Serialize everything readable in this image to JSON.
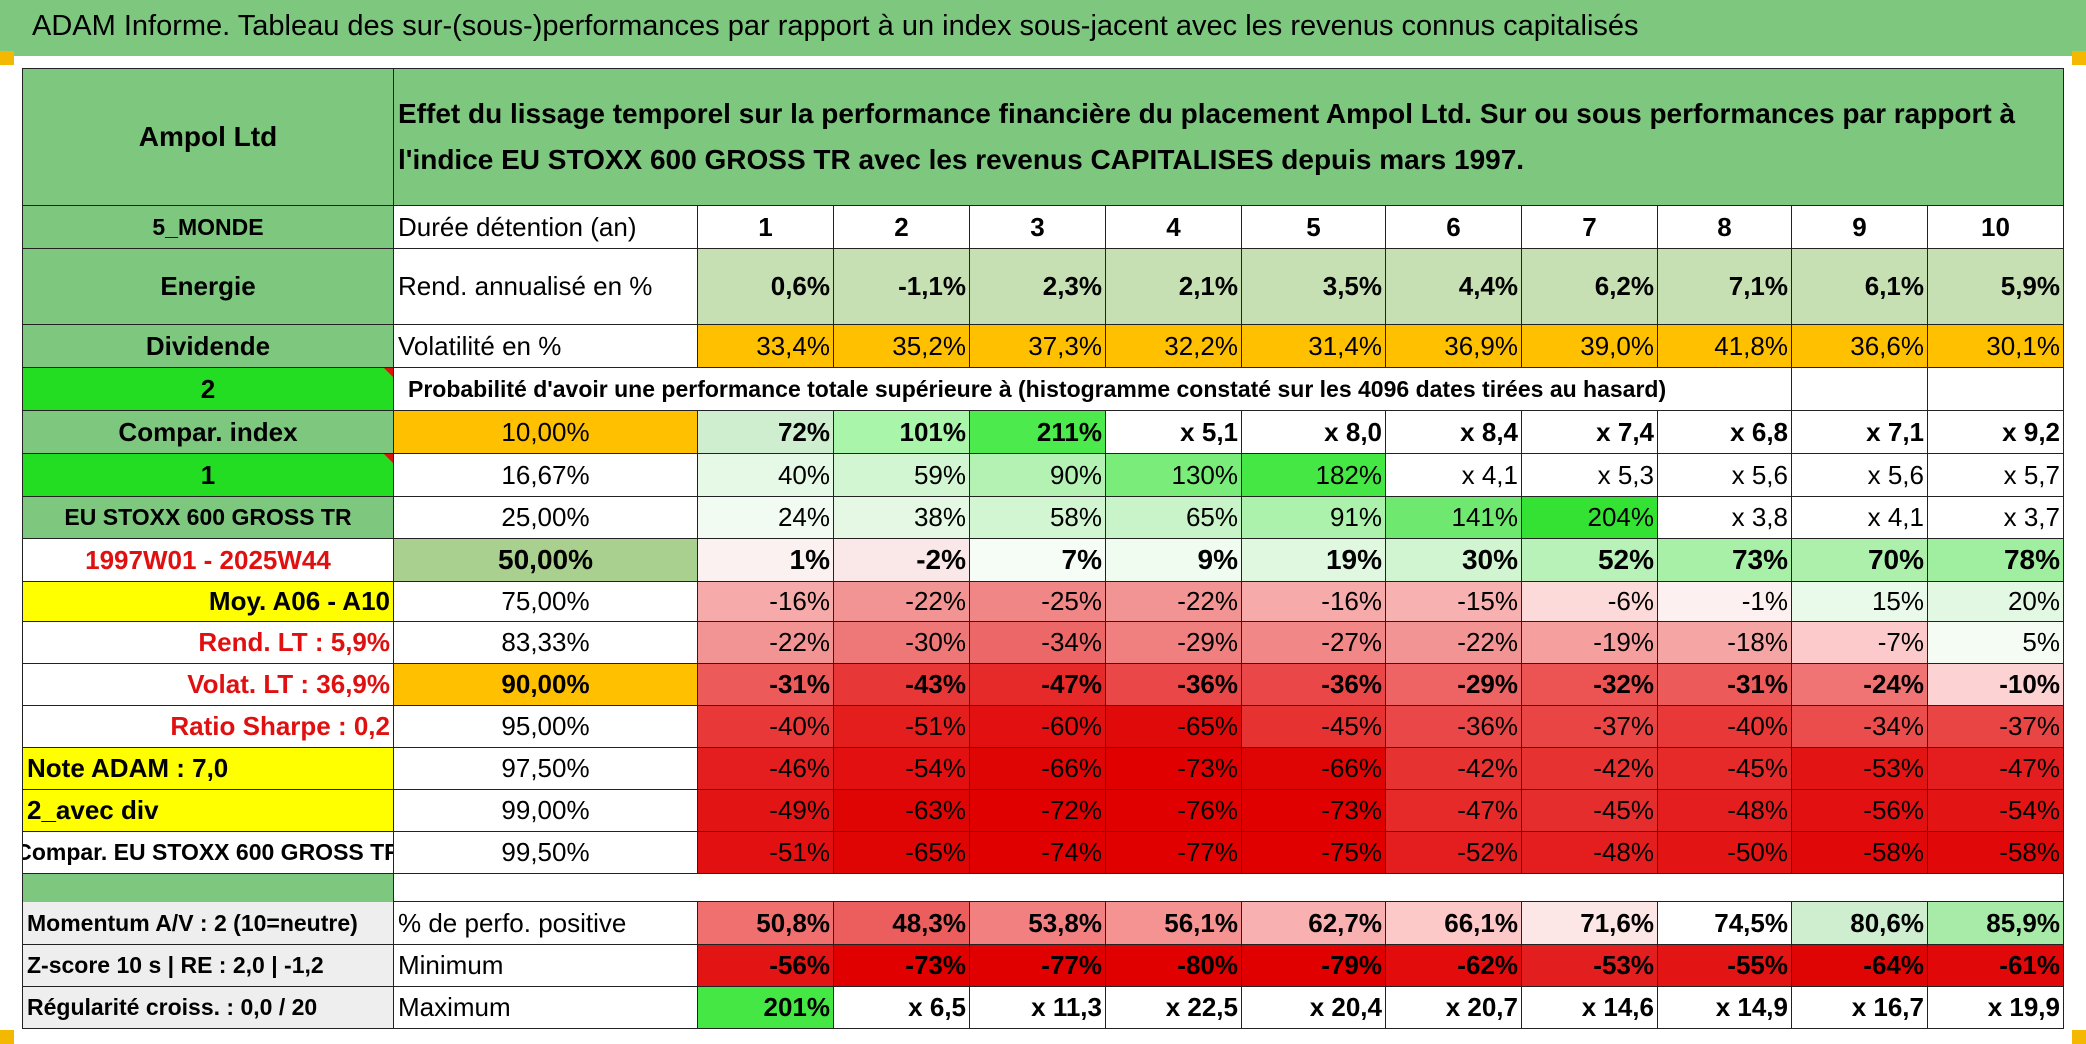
{
  "title": "ADAM Informe. Tableau des sur-(sous-)performances par rapport à un index sous-jacent avec les revenus connus capitalisés",
  "header": {
    "company": "Ampol Ltd",
    "description_line1": "Effet du lissage temporel sur la performance financière du placement Ampol Ltd. Sur ou sous performances par rapport à",
    "description_line2": "l'indice EU STOXX 600 GROSS TR avec les revenus CAPITALISES depuis mars 1997."
  },
  "side_labels": {
    "zone": "5_MONDE",
    "sector": "Energie",
    "type": "Dividende",
    "box2": "2",
    "compar_index": "Compar. index",
    "box1": "1",
    "index_name": "EU STOXX 600 GROSS TR",
    "period": "1997W01 - 2025W44",
    "moy": "Moy. A06 - A10",
    "rend_lt": "Rend. LT :   5,9%",
    "volat_lt": "Volat. LT :   36,9%",
    "sharpe": "Ratio Sharpe :    0,2",
    "note": "Note ADAM : 7,0",
    "avec_div": "2_avec div",
    "compar_full": "Compar. EU STOXX 600 GROSS TR",
    "momentum": "Momentum A/V : 2 (10=neutre)",
    "zscore": "Z-score 10 s | RE : 2,0 | -1,2",
    "regularite": "Régularité croiss. : 0,0 / 20"
  },
  "duration": {
    "label": "Durée détention (an)",
    "years": [
      "1",
      "2",
      "3",
      "4",
      "5",
      "6",
      "7",
      "8",
      "9",
      "10"
    ]
  },
  "rend": {
    "label": "Rend. annualisé en %",
    "values": [
      "0,6%",
      "-1,1%",
      "2,3%",
      "2,1%",
      "3,5%",
      "4,4%",
      "6,2%",
      "7,1%",
      "6,1%",
      "5,9%"
    ]
  },
  "vol": {
    "label": "Volatilité en %",
    "values": [
      "33,4%",
      "35,2%",
      "37,3%",
      "32,2%",
      "31,4%",
      "36,9%",
      "39,0%",
      "41,8%",
      "36,6%",
      "30,1%"
    ]
  },
  "prob_label": "Probabilité d'avoir une performance totale supérieure à (histogramme constaté sur les 4096 dates tirées au hasard)",
  "prob_rows": [
    {
      "pct": "10,00%",
      "values": [
        "72%",
        "101%",
        "211%",
        "x 5,1",
        "x 8,0",
        "x 8,4",
        "x 7,4",
        "x 6,8",
        "x 7,1",
        "x 9,2"
      ]
    },
    {
      "pct": "16,67%",
      "values": [
        "40%",
        "59%",
        "90%",
        "130%",
        "182%",
        "x 4,1",
        "x 5,3",
        "x 5,6",
        "x 5,6",
        "x 5,7"
      ]
    },
    {
      "pct": "25,00%",
      "values": [
        "24%",
        "38%",
        "58%",
        "65%",
        "91%",
        "141%",
        "204%",
        "x 3,8",
        "x 4,1",
        "x 3,7"
      ]
    },
    {
      "pct": "50,00%",
      "values": [
        "1%",
        "-2%",
        "7%",
        "9%",
        "19%",
        "30%",
        "52%",
        "73%",
        "70%",
        "78%"
      ]
    },
    {
      "pct": "75,00%",
      "values": [
        "-16%",
        "-22%",
        "-25%",
        "-22%",
        "-16%",
        "-15%",
        "-6%",
        "-1%",
        "15%",
        "20%"
      ]
    },
    {
      "pct": "83,33%",
      "values": [
        "-22%",
        "-30%",
        "-34%",
        "-29%",
        "-27%",
        "-22%",
        "-19%",
        "-18%",
        "-7%",
        "5%"
      ]
    },
    {
      "pct": "90,00%",
      "values": [
        "-31%",
        "-43%",
        "-47%",
        "-36%",
        "-36%",
        "-29%",
        "-32%",
        "-31%",
        "-24%",
        "-10%"
      ]
    },
    {
      "pct": "95,00%",
      "values": [
        "-40%",
        "-51%",
        "-60%",
        "-65%",
        "-45%",
        "-36%",
        "-37%",
        "-40%",
        "-34%",
        "-37%"
      ]
    },
    {
      "pct": "97,50%",
      "values": [
        "-46%",
        "-54%",
        "-66%",
        "-73%",
        "-66%",
        "-42%",
        "-42%",
        "-45%",
        "-53%",
        "-47%"
      ]
    },
    {
      "pct": "99,00%",
      "values": [
        "-49%",
        "-63%",
        "-72%",
        "-76%",
        "-73%",
        "-47%",
        "-45%",
        "-48%",
        "-56%",
        "-54%"
      ]
    },
    {
      "pct": "99,50%",
      "values": [
        "-51%",
        "-65%",
        "-74%",
        "-77%",
        "-75%",
        "-52%",
        "-48%",
        "-50%",
        "-58%",
        "-58%"
      ]
    }
  ],
  "positive": {
    "label": "% de perfo. positive",
    "values": [
      "50,8%",
      "48,3%",
      "53,8%",
      "56,1%",
      "62,7%",
      "66,1%",
      "71,6%",
      "74,5%",
      "80,6%",
      "85,9%"
    ]
  },
  "minimum": {
    "label": "Minimum",
    "values": [
      "-56%",
      "-73%",
      "-77%",
      "-80%",
      "-79%",
      "-62%",
      "-53%",
      "-55%",
      "-64%",
      "-61%"
    ]
  },
  "maximum": {
    "label": "Maximum",
    "values": [
      "201%",
      "x 6,5",
      "x 11,3",
      "x 22,5",
      "x 20,4",
      "x 20,7",
      "x 14,6",
      "x 14,9",
      "x 16,7",
      "x 19,9"
    ]
  },
  "colors": {
    "header_green": "#7dc77e",
    "bright_green": "#22dd22",
    "yellow": "#ffff00",
    "orange": "#ffc000",
    "pale_green": "#a9d08e",
    "light_green": "#c6e0b4",
    "red_text": "#e01010",
    "prob_rows": [
      [
        "#cfeecf",
        "#a9f5a9",
        "#4dea4d",
        "#ffffff",
        "#ffffff",
        "#ffffff",
        "#ffffff",
        "#ffffff",
        "#ffffff",
        "#ffffff"
      ],
      [
        "#e6f8e6",
        "#d2f5d2",
        "#b3f2b3",
        "#79ec79",
        "#44e744",
        "#ffffff",
        "#ffffff",
        "#ffffff",
        "#ffffff",
        "#ffffff"
      ],
      [
        "#f1fbf1",
        "#e4f8e4",
        "#d2f5d2",
        "#c9f3c9",
        "#acf2ac",
        "#6ee86e",
        "#33e233",
        "#ffffff",
        "#ffffff",
        "#ffffff"
      ],
      [
        "#fbf1f1",
        "#fae8e8",
        "#f6fdf6",
        "#f0fcf0",
        "#e0f8e0",
        "#d0f5d0",
        "#b8f2b8",
        "#a8efa8",
        "#acf0ac",
        "#a0eea0"
      ],
      [
        "#f7aaaa",
        "#f39494",
        "#f08686",
        "#f39494",
        "#f7aaaa",
        "#f8b1b1",
        "#fcdada",
        "#fdf0f0",
        "#eafaea",
        "#e3f8e3"
      ],
      [
        "#f39494",
        "#ee7878",
        "#ec6868",
        "#f08080",
        "#f18787",
        "#f39494",
        "#f59f9f",
        "#f6a5a5",
        "#fccaca",
        "#f4fcf4"
      ],
      [
        "#ec5a5a",
        "#e83737",
        "#e62a2a",
        "#ea4848",
        "#ea4848",
        "#ee6464",
        "#ec5454",
        "#ec5a5a",
        "#f07474",
        "#fcd2d2"
      ],
      [
        "#e83838",
        "#e41d1d",
        "#e21010",
        "#e00a0a",
        "#e73232",
        "#ea4848",
        "#ea4545",
        "#e83838",
        "#eb4c4c",
        "#ea4545"
      ],
      [
        "#e41e1e",
        "#e21010",
        "#e00505",
        "#e00000",
        "#e00505",
        "#e73232",
        "#e73232",
        "#e62a2a",
        "#e21414",
        "#e41e1e"
      ],
      [
        "#e21414",
        "#e00505",
        "#e00000",
        "#e00000",
        "#e00000",
        "#e62a2a",
        "#e62d2d",
        "#e41e1e",
        "#e21010",
        "#e21414"
      ],
      [
        "#e21010",
        "#e00505",
        "#e00000",
        "#e00000",
        "#e00000",
        "#e41e1e",
        "#e41e1e",
        "#e21414",
        "#e00808",
        "#e00808"
      ]
    ],
    "positive": [
      "#f07070",
      "#ec5e5e",
      "#f38080",
      "#f59292",
      "#f9b0b0",
      "#fcc8c8",
      "#fde6e6",
      "#ffffff",
      "#cfeecf",
      "#a8eba8"
    ],
    "minimum": [
      "#e21414",
      "#e00000",
      "#e00000",
      "#e00000",
      "#e00000",
      "#e20c0c",
      "#e21e1e",
      "#e21414",
      "#e00505",
      "#e00808"
    ],
    "maximum": [
      "#44e744",
      "#ffffff",
      "#ffffff",
      "#ffffff",
      "#ffffff",
      "#ffffff",
      "#ffffff",
      "#ffffff",
      "#ffffff",
      "#ffffff"
    ]
  }
}
